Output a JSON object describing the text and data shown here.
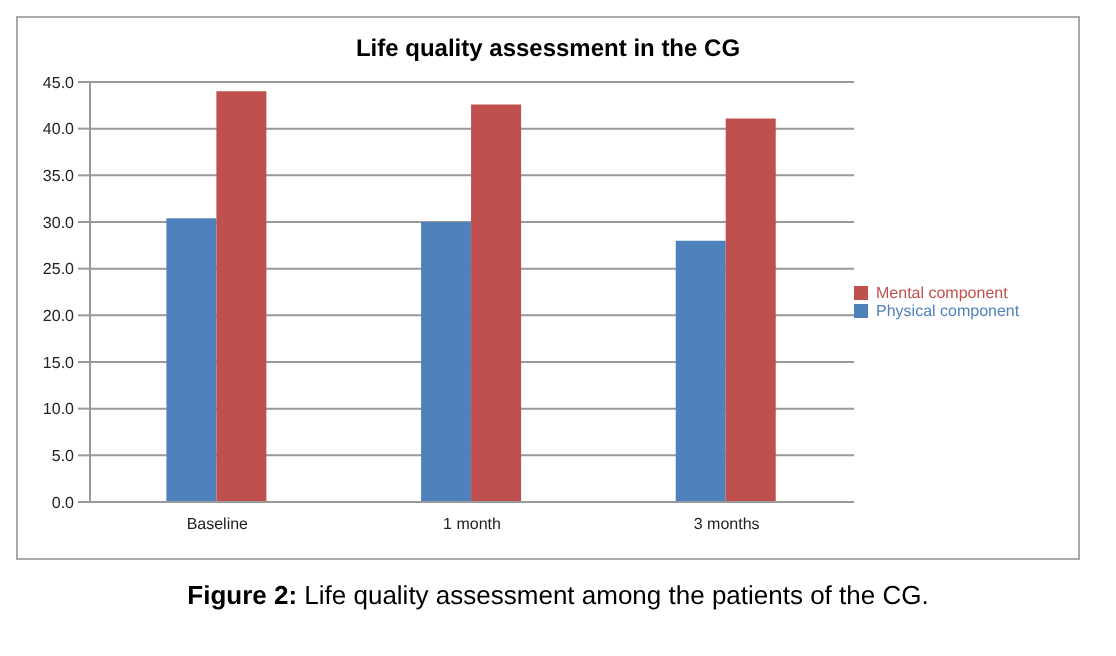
{
  "chart_data": {
    "type": "bar",
    "title": "Life quality assessment in the CG",
    "categories": [
      "Baseline",
      "1 month",
      "3 months"
    ],
    "series": [
      {
        "name": "Physical component",
        "color": "#4f81bd",
        "values": [
          30.4,
          30.0,
          28.0
        ]
      },
      {
        "name": "Mental component",
        "color": "#c0504d",
        "values": [
          44.0,
          42.6,
          41.1
        ]
      }
    ],
    "ylim": [
      0,
      45
    ],
    "yticks": [
      {
        "value": 0,
        "label": "0.0"
      },
      {
        "value": 5,
        "label": "5.0"
      },
      {
        "value": 10,
        "label": "10.0"
      },
      {
        "value": 15,
        "label": "15.0"
      },
      {
        "value": 20,
        "label": "20.0"
      },
      {
        "value": 25,
        "label": "25.0"
      },
      {
        "value": 30,
        "label": "30.0"
      },
      {
        "value": 35,
        "label": "35.0"
      },
      {
        "value": 40,
        "label": "40.0"
      },
      {
        "value": 45,
        "label": "45.0"
      }
    ],
    "grid": "y",
    "legend": "right",
    "annotations": [
      "Figure 2: Life quality assessment among the patients of the CG."
    ]
  }
}
